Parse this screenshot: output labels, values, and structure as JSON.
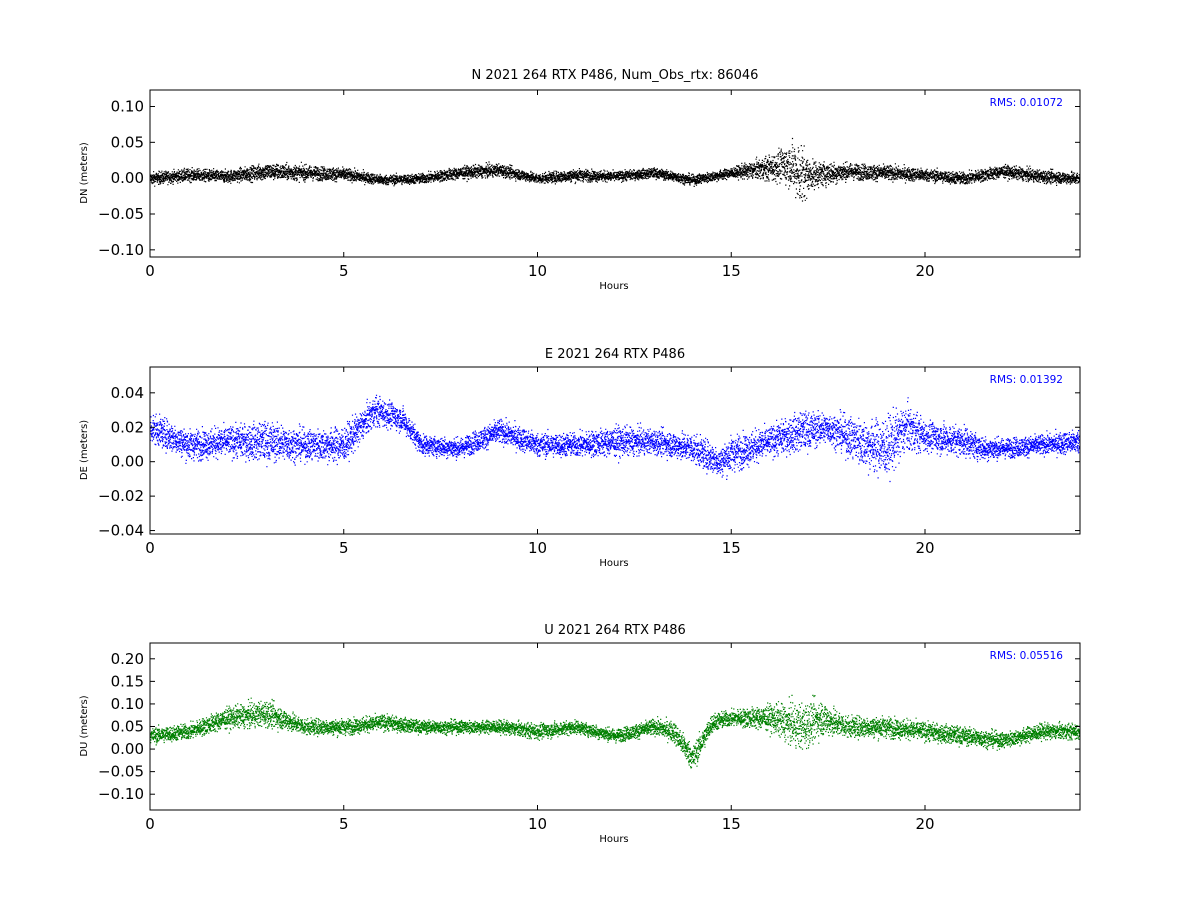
{
  "chart_data": [
    {
      "type": "scatter",
      "title": "N 2021 264 RTX  P486, Num_Obs_rtx: 86046",
      "xlabel": "Hours",
      "ylabel": "DN (meters)",
      "xlim": [
        0,
        24
      ],
      "ylim": [
        -0.11,
        0.123
      ],
      "xticks": [
        0,
        5,
        10,
        15,
        20
      ],
      "xtick_labels": [
        "0",
        "5",
        "10",
        "15",
        "20"
      ],
      "yticks": [
        -0.1,
        -0.05,
        0.0,
        0.05,
        0.1
      ],
      "ytick_labels": [
        "−0.10",
        "−0.05",
        "0.00",
        "0.05",
        "0.10"
      ],
      "annotation": "RMS:  0.01072",
      "color": "#000000",
      "grid": false,
      "series": [
        {
          "x": [
            0,
            1,
            2,
            3,
            4,
            5,
            6,
            7,
            8,
            9,
            10,
            11,
            12,
            13,
            14,
            15,
            16,
            16.5,
            16.8,
            17,
            18,
            19,
            20,
            21,
            22,
            23,
            24
          ],
          "y": [
            0.0,
            0.005,
            0.003,
            0.01,
            0.008,
            0.006,
            -0.002,
            0.0,
            0.008,
            0.012,
            0.0,
            0.005,
            0.003,
            0.008,
            -0.002,
            0.008,
            0.015,
            0.02,
            0.005,
            0.005,
            0.01,
            0.008,
            0.005,
            0.0,
            0.01,
            0.003,
            0.0
          ],
          "spread": [
            0.015,
            0.015,
            0.015,
            0.02,
            0.018,
            0.015,
            0.012,
            0.012,
            0.015,
            0.015,
            0.012,
            0.015,
            0.012,
            0.012,
            0.012,
            0.012,
            0.03,
            0.05,
            0.08,
            0.035,
            0.02,
            0.018,
            0.015,
            0.015,
            0.015,
            0.015,
            0.015
          ]
        }
      ]
    },
    {
      "type": "scatter",
      "title": "E 2021 264 RTX  P486",
      "xlabel": "Hours",
      "ylabel": "DE (meters)",
      "xlim": [
        0,
        24
      ],
      "ylim": [
        -0.042,
        0.055
      ],
      "xticks": [
        0,
        5,
        10,
        15,
        20
      ],
      "xtick_labels": [
        "0",
        "5",
        "10",
        "15",
        "20"
      ],
      "yticks": [
        -0.04,
        -0.02,
        0.0,
        0.02,
        0.04
      ],
      "ytick_labels": [
        "−0.04",
        "−0.02",
        "0.00",
        "0.02",
        "0.04"
      ],
      "annotation": "RMS:  0.01392",
      "color": "#0000ff",
      "grid": false,
      "series": [
        {
          "x": [
            0,
            1,
            2,
            3,
            4,
            5,
            5.8,
            6.5,
            7,
            8,
            9,
            10,
            11,
            12,
            13,
            14,
            14.7,
            15,
            16,
            16.8,
            17.5,
            18.5,
            19,
            19.5,
            20,
            21,
            21.5,
            22,
            23,
            24
          ],
          "y": [
            0.02,
            0.01,
            0.012,
            0.012,
            0.01,
            0.01,
            0.03,
            0.025,
            0.01,
            0.008,
            0.018,
            0.01,
            0.01,
            0.012,
            0.012,
            0.008,
            0.0,
            0.005,
            0.012,
            0.018,
            0.02,
            0.01,
            0.008,
            0.02,
            0.015,
            0.012,
            0.008,
            0.008,
            0.01,
            0.012
          ],
          "spread": [
            0.015,
            0.015,
            0.015,
            0.02,
            0.015,
            0.018,
            0.015,
            0.012,
            0.01,
            0.01,
            0.012,
            0.012,
            0.012,
            0.015,
            0.012,
            0.015,
            0.015,
            0.018,
            0.015,
            0.02,
            0.015,
            0.025,
            0.03,
            0.025,
            0.015,
            0.015,
            0.012,
            0.01,
            0.01,
            0.012
          ]
        }
      ]
    },
    {
      "type": "scatter",
      "title": "U 2021 264 RTX  P486",
      "xlabel": "Hours",
      "ylabel": "DU (meters)",
      "xlim": [
        0,
        24
      ],
      "ylim": [
        -0.135,
        0.235
      ],
      "xticks": [
        0,
        5,
        10,
        15,
        20
      ],
      "xtick_labels": [
        "0",
        "5",
        "10",
        "15",
        "20"
      ],
      "yticks": [
        -0.1,
        -0.05,
        0.0,
        0.05,
        0.1,
        0.15,
        0.2
      ],
      "ytick_labels": [
        "−0.10",
        "−0.05",
        "0.00",
        "0.05",
        "0.10",
        "0.15",
        "0.20"
      ],
      "annotation": "RMS:  0.05516",
      "color": "#008000",
      "grid": false,
      "series": [
        {
          "x": [
            0,
            1,
            2,
            3,
            4,
            5,
            6,
            7,
            8,
            9,
            10,
            11,
            12,
            13,
            13.5,
            14,
            14.5,
            15,
            16,
            16.8,
            17.3,
            18,
            19,
            20,
            21,
            22,
            23,
            24
          ],
          "y": [
            0.03,
            0.04,
            0.07,
            0.08,
            0.05,
            0.05,
            0.06,
            0.05,
            0.05,
            0.05,
            0.04,
            0.05,
            0.03,
            0.05,
            0.04,
            -0.02,
            0.06,
            0.07,
            0.07,
            0.05,
            0.07,
            0.05,
            0.05,
            0.04,
            0.03,
            0.02,
            0.04,
            0.04
          ],
          "spread": [
            0.03,
            0.03,
            0.04,
            0.05,
            0.03,
            0.03,
            0.03,
            0.025,
            0.025,
            0.025,
            0.03,
            0.025,
            0.025,
            0.03,
            0.04,
            0.05,
            0.035,
            0.03,
            0.05,
            0.09,
            0.07,
            0.04,
            0.04,
            0.035,
            0.035,
            0.03,
            0.03,
            0.03
          ]
        }
      ]
    }
  ]
}
